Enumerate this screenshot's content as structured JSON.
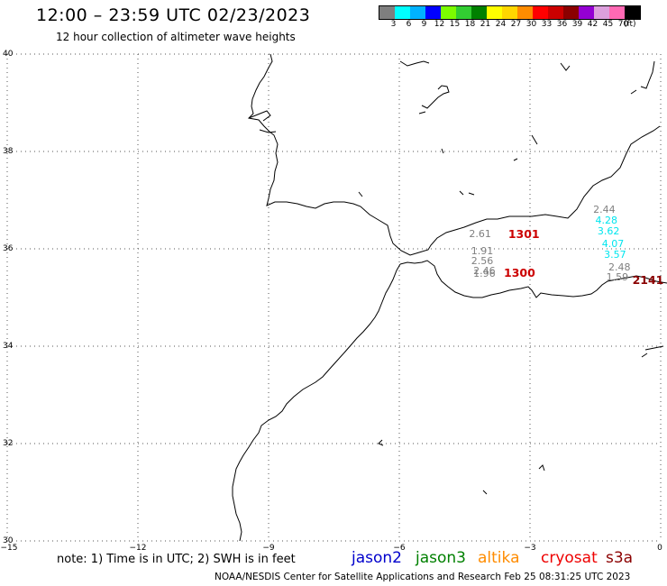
{
  "header": {
    "title": "12:00 – 23:59 UTC 02/23/2023",
    "subtitle": "12 hour collection of altimeter wave heights"
  },
  "legend": {
    "unit": "(ft)",
    "bins": [
      {
        "label": "3",
        "color": "#7f7f7f"
      },
      {
        "label": "6",
        "color": "#00ffff"
      },
      {
        "label": "9",
        "color": "#00b2ff"
      },
      {
        "label": "12",
        "color": "#0000ff"
      },
      {
        "label": "15",
        "color": "#7cfc00"
      },
      {
        "label": "18",
        "color": "#32cd32"
      },
      {
        "label": "21",
        "color": "#008000"
      },
      {
        "label": "24",
        "color": "#ffff00"
      },
      {
        "label": "27",
        "color": "#ffd700"
      },
      {
        "label": "30",
        "color": "#ff8c00"
      },
      {
        "label": "33",
        "color": "#ff0000"
      },
      {
        "label": "36",
        "color": "#cc0000"
      },
      {
        "label": "39",
        "color": "#8b0000"
      },
      {
        "label": "42",
        "color": "#9400d3"
      },
      {
        "label": "45",
        "color": "#dda0dd"
      },
      {
        "label": "70",
        "color": "#ff69b4"
      },
      {
        "label": "",
        "color": "#000000"
      }
    ]
  },
  "map": {
    "lon_ticks": [
      {
        "lon": -15,
        "label": "−15"
      },
      {
        "lon": -12,
        "label": "−12"
      },
      {
        "lon": -9,
        "label": "−9"
      },
      {
        "lon": -6,
        "label": "−6"
      },
      {
        "lon": -3,
        "label": "−3"
      },
      {
        "lon": 0,
        "label": "0"
      }
    ],
    "lat_ticks": [
      {
        "lat": 40,
        "label": "40"
      },
      {
        "lat": 38,
        "label": "38"
      },
      {
        "lat": 36,
        "label": "36"
      },
      {
        "lat": 34,
        "label": "34"
      },
      {
        "lat": 32,
        "label": "32"
      },
      {
        "lat": 30,
        "label": "30"
      }
    ],
    "observations": [
      {
        "value": "2.61",
        "lon": -4.4,
        "lat": 36.3,
        "color": "#7f7f7f"
      },
      {
        "value": "1.91",
        "lon": -4.35,
        "lat": 35.95,
        "color": "#7f7f7f"
      },
      {
        "value": "2.56",
        "lon": -4.35,
        "lat": 35.74,
        "color": "#7f7f7f"
      },
      {
        "value": "2.46",
        "lon": -4.3,
        "lat": 35.54,
        "color": "#7f7f7f"
      },
      {
        "value": "1.96",
        "lon": -4.3,
        "lat": 35.48,
        "color": "#7f7f7f"
      },
      {
        "value": "2.44",
        "lon": -1.55,
        "lat": 36.8,
        "color": "#7f7f7f"
      },
      {
        "value": "4.28",
        "lon": -1.5,
        "lat": 36.58,
        "color": "#00e5ee"
      },
      {
        "value": "3.62",
        "lon": -1.45,
        "lat": 36.35,
        "color": "#00e5ee"
      },
      {
        "value": "4.07",
        "lon": -1.35,
        "lat": 36.1,
        "color": "#00e5ee"
      },
      {
        "value": "3.57",
        "lon": -1.3,
        "lat": 35.87,
        "color": "#00e5ee"
      },
      {
        "value": "2.48",
        "lon": -1.2,
        "lat": 35.62,
        "color": "#7f7f7f"
      },
      {
        "value": "1.59",
        "lon": -1.25,
        "lat": 35.4,
        "color": "#7f7f7f"
      }
    ],
    "passes": [
      {
        "time": "1301",
        "lon": -3.5,
        "lat": 36.3,
        "color": "#cc0000"
      },
      {
        "time": "1300",
        "lon": -3.6,
        "lat": 35.5,
        "color": "#cc0000"
      },
      {
        "time": "2141",
        "lon": -0.65,
        "lat": 35.35,
        "color": "#8b0000"
      }
    ]
  },
  "footer": {
    "note": "note:  1) Time is in UTC;  2) SWH is in feet",
    "satellites": [
      {
        "name": "jason2",
        "color": "#0000cc"
      },
      {
        "name": "jason3",
        "color": "#008000"
      },
      {
        "name": "altika",
        "color": "#ff8c00"
      },
      {
        "name": "cryosat",
        "color": "#ee0000"
      },
      {
        "name": "s3a",
        "color": "#8b0000"
      }
    ],
    "credit": "NOAA/NESDIS Center for Satellite Applications and Research     Feb 25 08:31:25 UTC 2023"
  }
}
